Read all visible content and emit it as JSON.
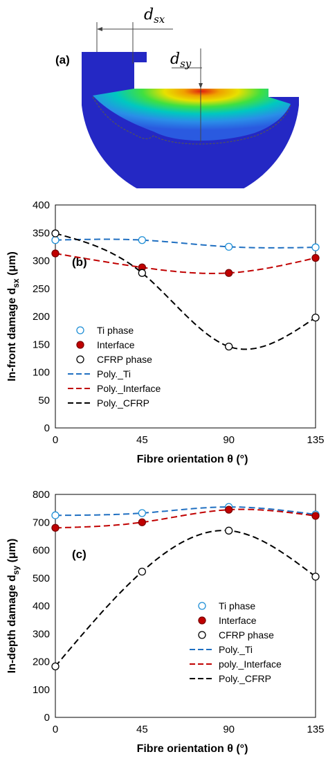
{
  "figure": {
    "panel_a_label": "(a)",
    "dim_x": {
      "main": "d",
      "sub": "sx"
    },
    "dim_y": {
      "main": "d",
      "sub": "sy"
    },
    "colors": {
      "ti": "#1f6fc1",
      "interface": "#c00000",
      "cfrp": "#000000",
      "tool": "#2a2ab8"
    }
  },
  "chart_data": [
    {
      "type": "scatter",
      "panel_label": "(b)",
      "ylabel_main": "In-front damage d",
      "ylabel_sub": "sx",
      "ylabel_unit": " (μm)",
      "xlabel": "Fibre orientation θ (°)",
      "x_ticks": [
        0,
        45,
        90,
        135
      ],
      "y_ticks": [
        0,
        50,
        100,
        150,
        200,
        250,
        300,
        350,
        400
      ],
      "xlim": [
        0,
        135
      ],
      "ylim": [
        0,
        400
      ],
      "grid": false,
      "legend_position": "center-left",
      "series": [
        {
          "name": "Ti phase",
          "marker": "open-circle",
          "color": "#1f8fd6",
          "x": [
            0,
            45,
            90,
            135
          ],
          "y": [
            337,
            337,
            325,
            324
          ]
        },
        {
          "name": "Interface",
          "marker": "filled-circle",
          "color": "#c00000",
          "x": [
            0,
            45,
            90,
            135
          ],
          "y": [
            313,
            288,
            278,
            305
          ]
        },
        {
          "name": "CFRP phase",
          "marker": "open-circle",
          "color": "#000000",
          "x": [
            0,
            45,
            90,
            135
          ],
          "y": [
            349,
            278,
            146,
            198
          ]
        }
      ],
      "fits": [
        {
          "name": "Poly._Ti",
          "color": "#1f6fc1",
          "x": [
            0,
            45,
            90,
            135
          ],
          "y": [
            337,
            337,
            325,
            324
          ]
        },
        {
          "name": "Poly._Interface",
          "color": "#c00000",
          "x": [
            0,
            45,
            90,
            135
          ],
          "y": [
            313,
            288,
            278,
            305
          ]
        },
        {
          "name": "Poly._CFRP",
          "color": "#000000",
          "x": [
            0,
            45,
            90,
            135
          ],
          "y": [
            349,
            278,
            146,
            198
          ]
        }
      ]
    },
    {
      "type": "scatter",
      "panel_label": "(c)",
      "ylabel_main": "In-depth damage d",
      "ylabel_sub": "sy",
      "ylabel_unit": " (μm)",
      "xlabel": "Fibre orientation θ (°)",
      "x_ticks": [
        0,
        45,
        90,
        135
      ],
      "y_ticks": [
        0,
        100,
        200,
        300,
        400,
        500,
        600,
        700,
        800
      ],
      "xlim": [
        0,
        135
      ],
      "ylim": [
        0,
        800
      ],
      "grid": false,
      "legend_position": "bottom-right",
      "series": [
        {
          "name": "Ti phase",
          "marker": "open-circle",
          "color": "#1f8fd6",
          "x": [
            0,
            45,
            90,
            135
          ],
          "y": [
            725,
            733,
            755,
            728
          ]
        },
        {
          "name": "Interface",
          "marker": "filled-circle",
          "color": "#c00000",
          "x": [
            0,
            45,
            90,
            135
          ],
          "y": [
            680,
            700,
            745,
            723
          ]
        },
        {
          "name": "CFRP phase",
          "marker": "open-circle",
          "color": "#000000",
          "x": [
            0,
            45,
            90,
            135
          ],
          "y": [
            183,
            523,
            670,
            505
          ]
        }
      ],
      "fits": [
        {
          "name": "Poly._Ti",
          "color": "#1f6fc1",
          "x": [
            0,
            45,
            90,
            135
          ],
          "y": [
            725,
            733,
            755,
            728
          ]
        },
        {
          "name": "poly._Interface",
          "color": "#c00000",
          "x": [
            0,
            45,
            90,
            135
          ],
          "y": [
            680,
            700,
            745,
            723
          ]
        },
        {
          "name": "Poly._CFRP",
          "color": "#000000",
          "x": [
            0,
            45,
            90,
            135
          ],
          "y": [
            183,
            523,
            670,
            505
          ]
        }
      ]
    }
  ]
}
